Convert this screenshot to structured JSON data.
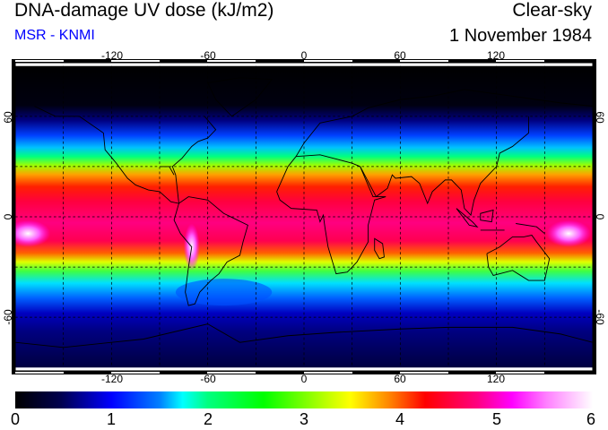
{
  "header": {
    "title": "DNA-damage UV dose (kJ/m2)",
    "subtitle": "MSR - KNMI",
    "condition": "Clear-sky",
    "date": "1 November 1984"
  },
  "map": {
    "lon_ticks": [
      "-120",
      "-60",
      "0",
      "60",
      "120"
    ],
    "lat_ticks": [
      "60",
      "0",
      "-60"
    ]
  },
  "colorbar": {
    "labels": [
      "0",
      "1",
      "2",
      "3",
      "4",
      "5",
      "6"
    ],
    "min": 0,
    "max": 6,
    "unit": "kJ/m2"
  }
}
